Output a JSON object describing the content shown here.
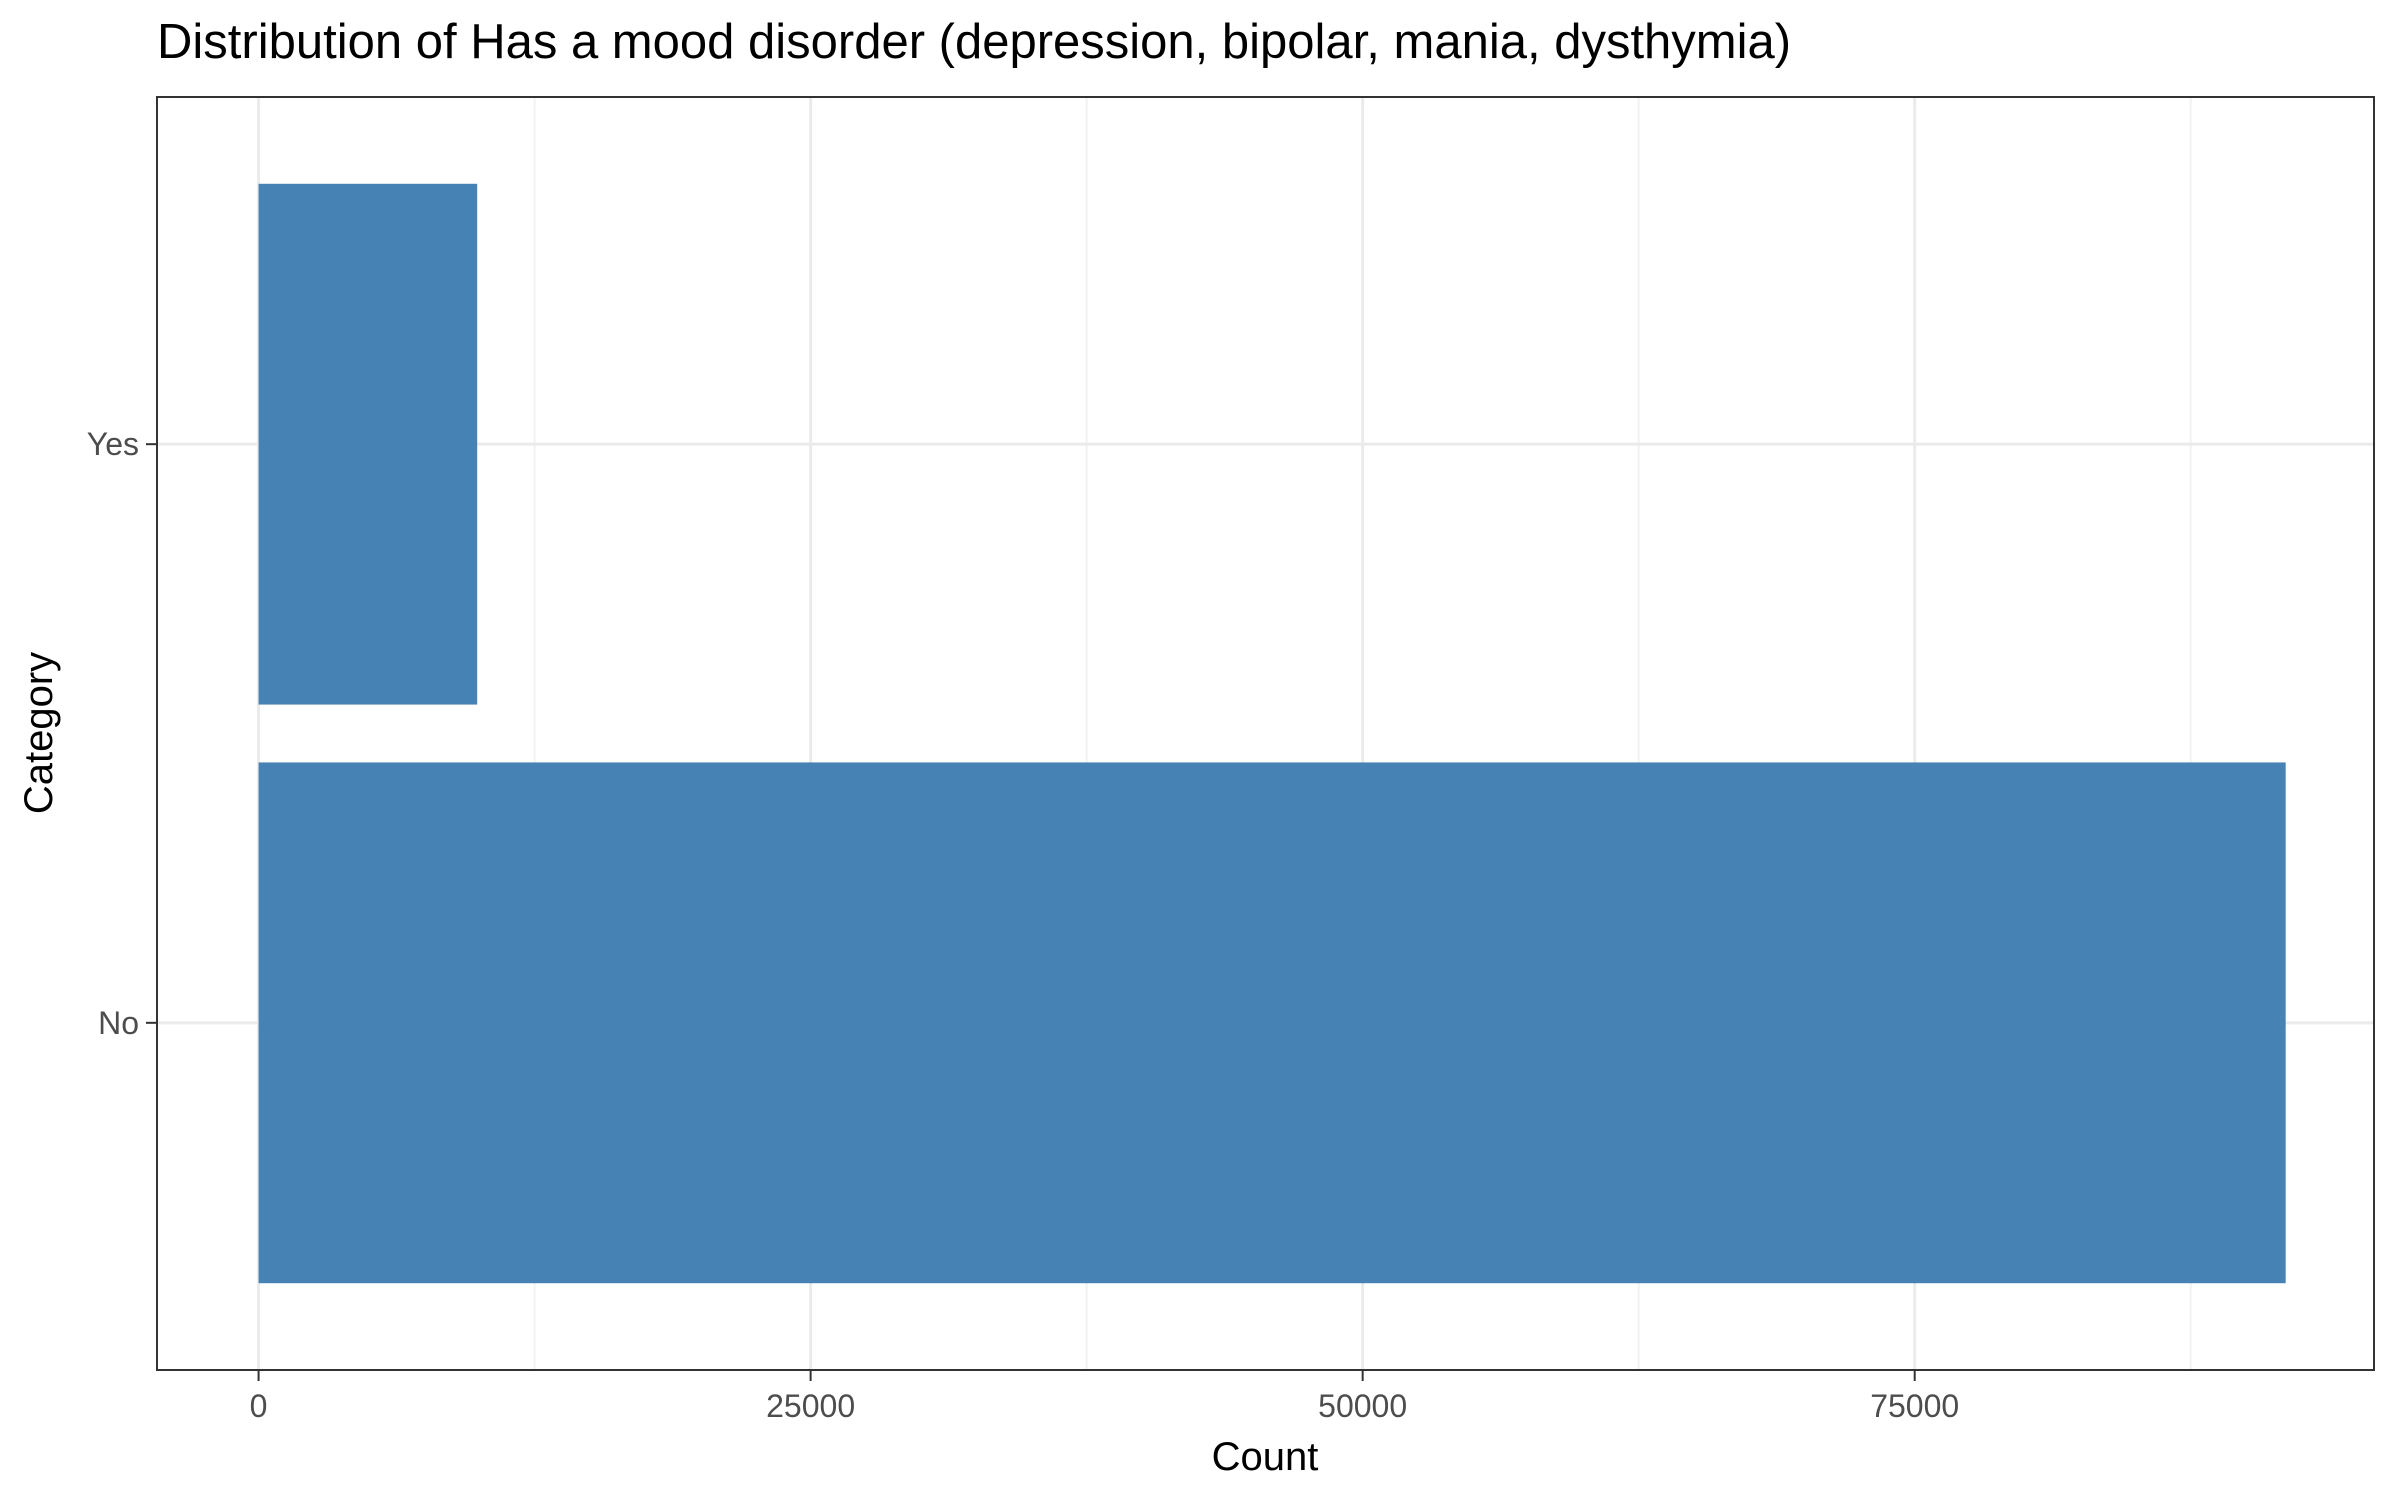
{
  "chart_data": {
    "type": "bar",
    "orientation": "horizontal",
    "title": "Distribution of Has a mood disorder (depression, bipolar, mania, dysthymia)",
    "xlabel": "Count",
    "ylabel": "Category",
    "categories": [
      "No",
      "Yes"
    ],
    "values": [
      91800,
      9900
    ],
    "xlim": [
      -4600,
      95800
    ],
    "x_ticks": [
      0,
      25000,
      50000,
      75000
    ],
    "x_tick_labels": [
      "0",
      "25000",
      "50000",
      "75000"
    ],
    "grid": true,
    "bar_color": "#4682B4"
  },
  "colors": {
    "bar": "#4682B4",
    "grid_major": "#EBEBEB",
    "grid_minor": "#F2F2F2",
    "panel_border": "#333333",
    "tick_text": "#4D4D4D",
    "title_text": "#000000"
  }
}
